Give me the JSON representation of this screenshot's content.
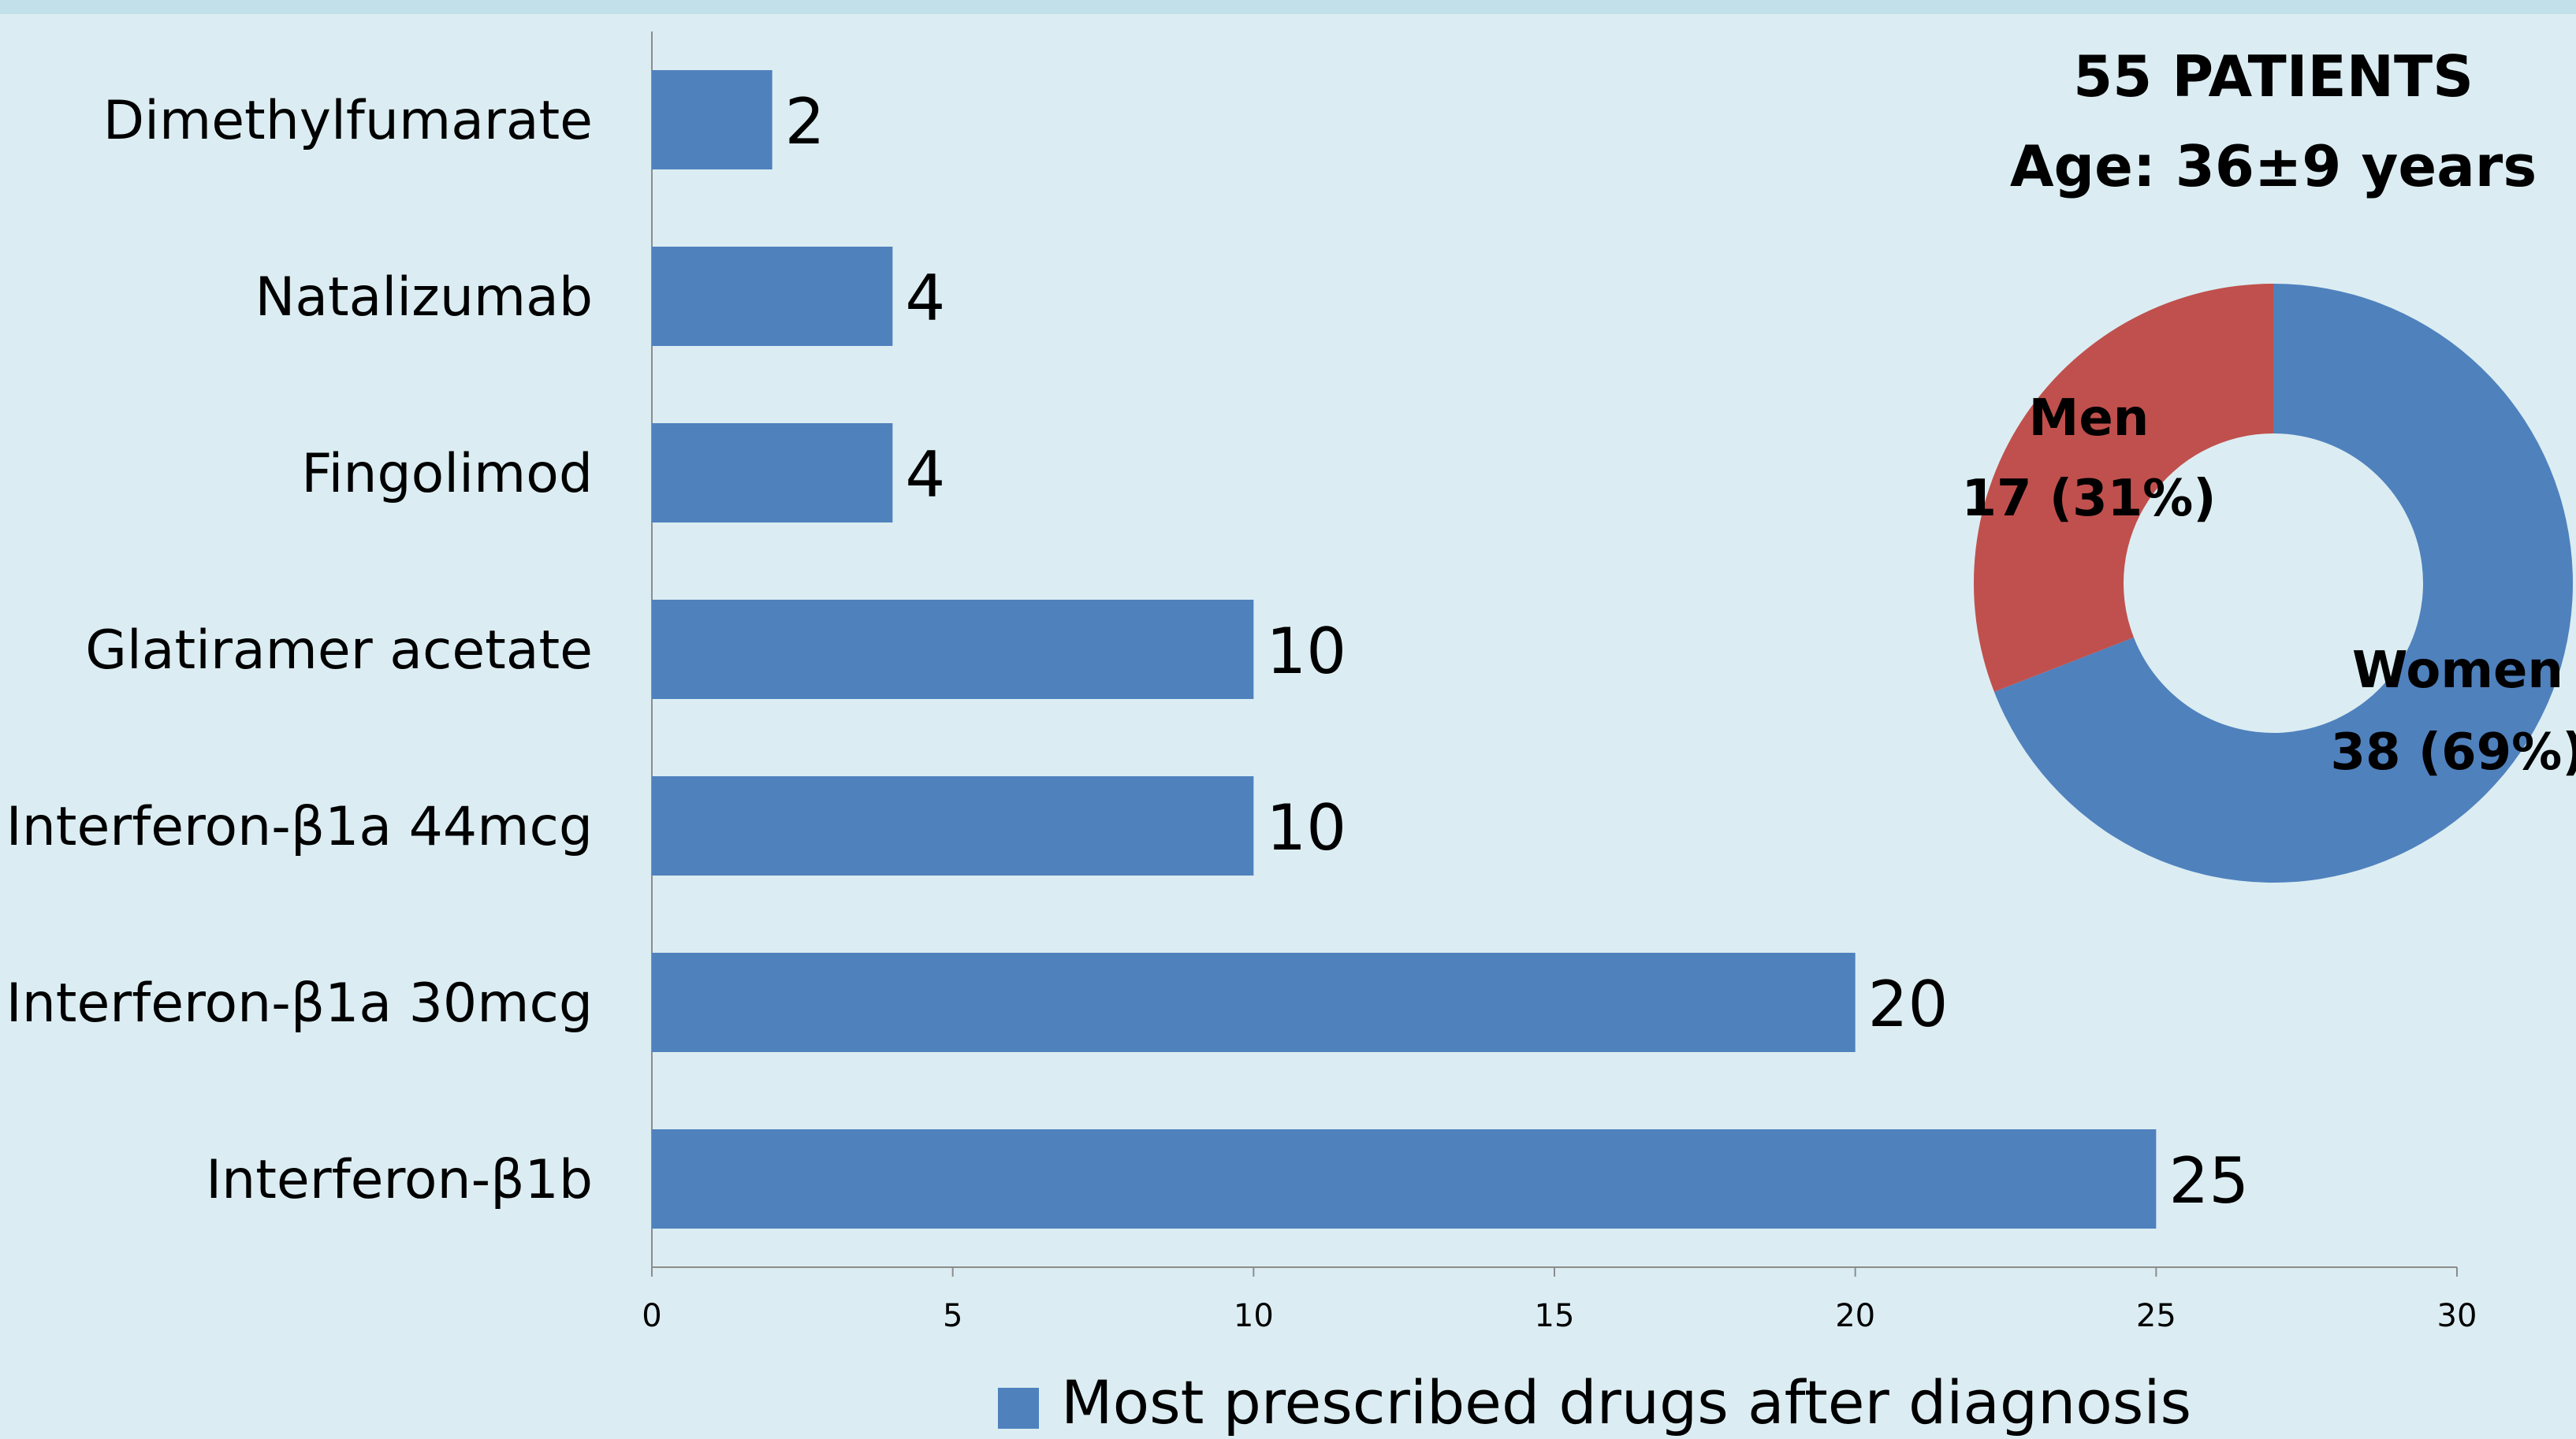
{
  "colors": {
    "background": "#dbedf2",
    "bar": "#4f81bd",
    "women": "#4f81bd",
    "men": "#c0504d",
    "axis": "#8c8c8c",
    "text": "#000000"
  },
  "chart_data": [
    {
      "type": "bar",
      "orientation": "horizontal",
      "categories": [
        "Dimethylfumarate",
        "Natalizumab",
        "Fingolimod",
        "Glatiramer acetate",
        "Interferon-β1a 44mcg",
        "Interferon-β1a 30mcg",
        "Interferon-β1b"
      ],
      "series": [
        {
          "name": "Most prescribed drugs after diagnosis",
          "values": [
            2,
            4,
            4,
            10,
            10,
            20,
            25
          ]
        }
      ],
      "data_labels": [
        "2",
        "4",
        "4",
        "10",
        "10",
        "20",
        "25"
      ],
      "xlim": [
        0,
        30
      ],
      "xticks": [
        0,
        5,
        10,
        15,
        20,
        25,
        30
      ],
      "xtick_labels": [
        "0",
        "5",
        "10",
        "15",
        "20",
        "25",
        "30"
      ],
      "grid": false,
      "legend": {
        "placement": "bottom",
        "entries": [
          "Most prescribed drugs after diagnosis"
        ]
      }
    },
    {
      "type": "pie",
      "variant": "donut",
      "title": "55 PATIENTS",
      "subtitle": "Age: 36±9 years",
      "slices": [
        {
          "label": "Women",
          "value": 38,
          "percent": 69,
          "value_label": "38 (69%)"
        },
        {
          "label": "Men",
          "value": 17,
          "percent": 31,
          "value_label": "17 (31%)"
        }
      ]
    }
  ]
}
